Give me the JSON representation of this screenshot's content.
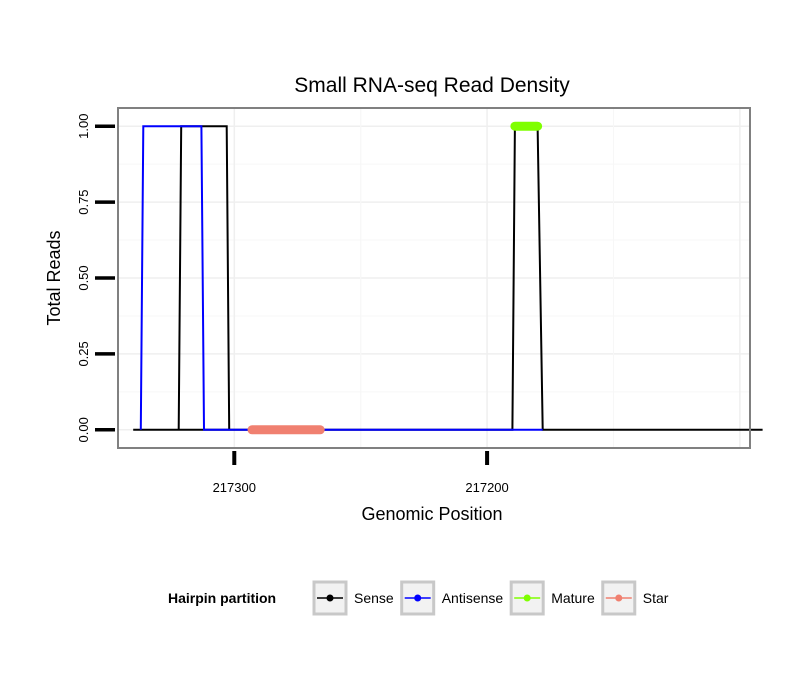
{
  "chart_data": {
    "type": "line",
    "title": "Small RNA-seq Read Density",
    "xlabel": "Genomic Position",
    "ylabel": "Total Reads",
    "x_reversed": true,
    "xlim": [
      217346,
      217096
    ],
    "ylim": [
      -0.06,
      1.06
    ],
    "x_ticks": [
      217300,
      217200
    ],
    "x_tick_labels": [
      "217300",
      "217200"
    ],
    "y_ticks": [
      0,
      0.25,
      0.5,
      0.75,
      1
    ],
    "y_tick_labels": [
      "0.00",
      "0.25",
      "0.50",
      "0.75",
      "1.00"
    ],
    "grid": true,
    "legend_position": "bottom",
    "legend_title": "Hairpin partition",
    "series": [
      {
        "name": "Sense",
        "color": "#000000",
        "style": "line",
        "x": [
          217340,
          217315,
          217315,
          217314,
          217314,
          217312,
          217312,
          217310,
          217310,
          217292,
          217292,
          217190,
          217190,
          217189,
          217189,
          217180,
          217180,
          217178,
          217178,
          217091
        ],
        "y": [
          0,
          0,
          0,
          0,
          0,
          0,
          0,
          0,
          0,
          0,
          0,
          0,
          0,
          1,
          1,
          1,
          1,
          0,
          0,
          0
        ]
      },
      {
        "name": "Sense-peak2",
        "legend": false,
        "color": "#000000",
        "style": "line",
        "x": [
          217322,
          217321,
          217303,
          217302
        ],
        "y": [
          0,
          1,
          1,
          0
        ]
      },
      {
        "name": "Antisense",
        "color": "#0000ff",
        "style": "line",
        "x": [
          217337,
          217336,
          217313,
          217312,
          217312,
          217302,
          217302,
          217190,
          217190,
          217178
        ],
        "y": [
          0,
          1,
          1,
          0,
          0,
          0,
          0,
          0,
          0,
          0
        ]
      },
      {
        "name": "Mature",
        "color": "#7fff00",
        "style": "thick",
        "x": [
          217189,
          217180
        ],
        "y": [
          1,
          1
        ]
      },
      {
        "name": "Star",
        "color": "#f08070",
        "style": "thick",
        "x": [
          217293,
          217266
        ],
        "y": [
          0,
          0
        ]
      }
    ],
    "legend_entries": [
      {
        "label": "Sense",
        "color": "#000000"
      },
      {
        "label": "Antisense",
        "color": "#0000ff"
      },
      {
        "label": "Mature",
        "color": "#7fff00"
      },
      {
        "label": "Star",
        "color": "#f08070"
      }
    ]
  }
}
